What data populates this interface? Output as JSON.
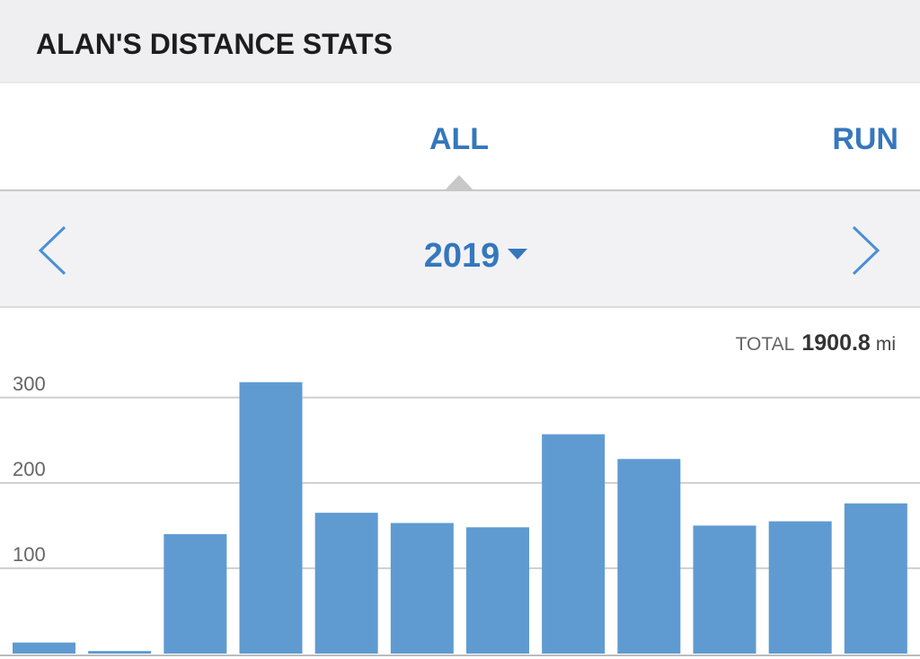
{
  "header": {
    "title": "ALAN'S DISTANCE STATS"
  },
  "tabs": [
    "ALL",
    "RUN"
  ],
  "year": "2019",
  "total": {
    "label": "TOTAL",
    "value": 1900.8,
    "unit": "mi"
  },
  "chart_data": {
    "type": "bar",
    "values": [
      13,
      3,
      140,
      318,
      165,
      153,
      148,
      257,
      228,
      150,
      155,
      176
    ],
    "color": "#5f9bd1",
    "ylim": [
      0,
      345
    ],
    "yticks": [
      100,
      200,
      300
    ],
    "grid": true
  }
}
